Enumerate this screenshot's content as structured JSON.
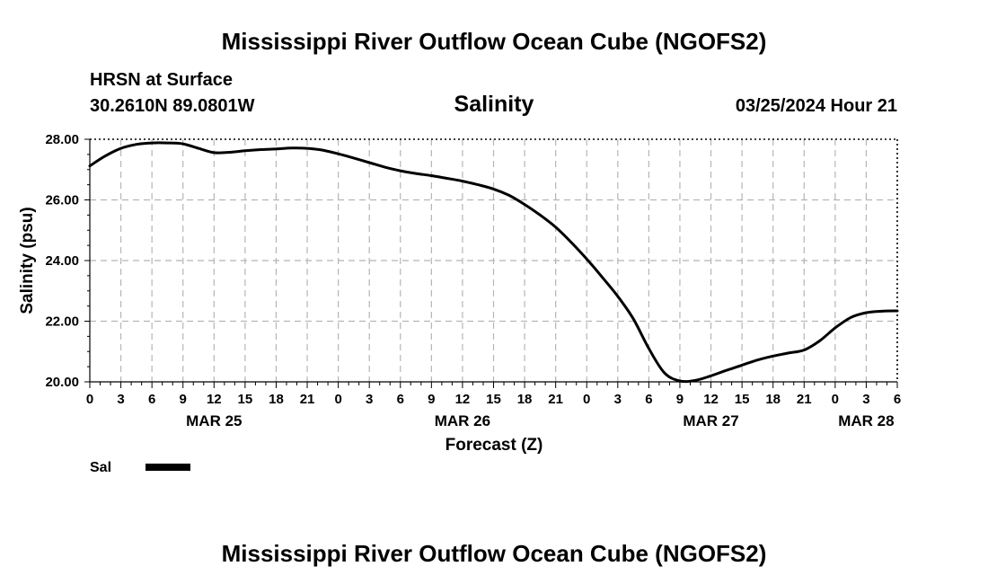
{
  "header": {
    "title": "Mississippi River Outflow Ocean Cube (NGOFS2)",
    "station": "HRSN at Surface",
    "coords": "30.2610N  89.0801W",
    "timestamp": "03/25/2024 Hour 21",
    "footer_title": "Mississippi River Outflow Ocean Cube (NGOFS2)"
  },
  "chart_data": {
    "type": "line",
    "title": "Salinity",
    "xlabel": "Forecast (Z)",
    "ylabel": "Salinity (psu)",
    "ylim": [
      20.0,
      28.0
    ],
    "yticks": [
      20.0,
      22.0,
      24.0,
      26.0,
      28.0
    ],
    "ytick_labels": [
      "20.00",
      "22.00",
      "24.00",
      "26.00",
      "28.00"
    ],
    "x_unit": "hours since MAR 25 00Z",
    "xlim": [
      0,
      78
    ],
    "xtick_hours": [
      0,
      3,
      6,
      9,
      12,
      15,
      18,
      21,
      24,
      27,
      30,
      33,
      36,
      39,
      42,
      45,
      48,
      51,
      54,
      57,
      60,
      63,
      66,
      69,
      72,
      75,
      78
    ],
    "xtick_labels": [
      "0",
      "3",
      "6",
      "9",
      "12",
      "15",
      "18",
      "21",
      "0",
      "3",
      "6",
      "9",
      "12",
      "15",
      "18",
      "21",
      "0",
      "3",
      "6",
      "9",
      "12",
      "15",
      "18",
      "21",
      "0",
      "3",
      "6"
    ],
    "date_labels": [
      {
        "hour": 12,
        "label": "MAR 25"
      },
      {
        "hour": 36,
        "label": "MAR 26"
      },
      {
        "hour": 60,
        "label": "MAR 27"
      },
      {
        "hour": 75,
        "label": "MAR 28"
      }
    ],
    "grid": true,
    "legend": "bottom-left",
    "series": [
      {
        "name": "Sal",
        "color": "#000000",
        "x": [
          0,
          1.5,
          3,
          4.5,
          6,
          7.5,
          9,
          10.5,
          12,
          13.5,
          15,
          16.5,
          18,
          19.5,
          21,
          22.5,
          24,
          25.5,
          27,
          28.5,
          30,
          31.5,
          33,
          34.5,
          36,
          37.5,
          39,
          40.5,
          42,
          43.5,
          45,
          46.5,
          48,
          49.5,
          51,
          52.5,
          54,
          55.5,
          57,
          58.5,
          60,
          61.5,
          63,
          64.5,
          66,
          67.5,
          69,
          70.5,
          72,
          73.5,
          75,
          76.5,
          78
        ],
        "values": [
          27.12,
          27.45,
          27.7,
          27.83,
          27.88,
          27.88,
          27.85,
          27.7,
          27.56,
          27.57,
          27.62,
          27.66,
          27.68,
          27.71,
          27.7,
          27.64,
          27.52,
          27.38,
          27.23,
          27.08,
          26.96,
          26.87,
          26.8,
          26.71,
          26.62,
          26.5,
          26.36,
          26.15,
          25.85,
          25.5,
          25.1,
          24.6,
          24.05,
          23.45,
          22.82,
          22.08,
          21.1,
          20.3,
          20.03,
          20.05,
          20.2,
          20.38,
          20.55,
          20.72,
          20.85,
          20.95,
          21.05,
          21.35,
          21.78,
          22.12,
          22.28,
          22.33,
          22.34
        ]
      }
    ]
  }
}
